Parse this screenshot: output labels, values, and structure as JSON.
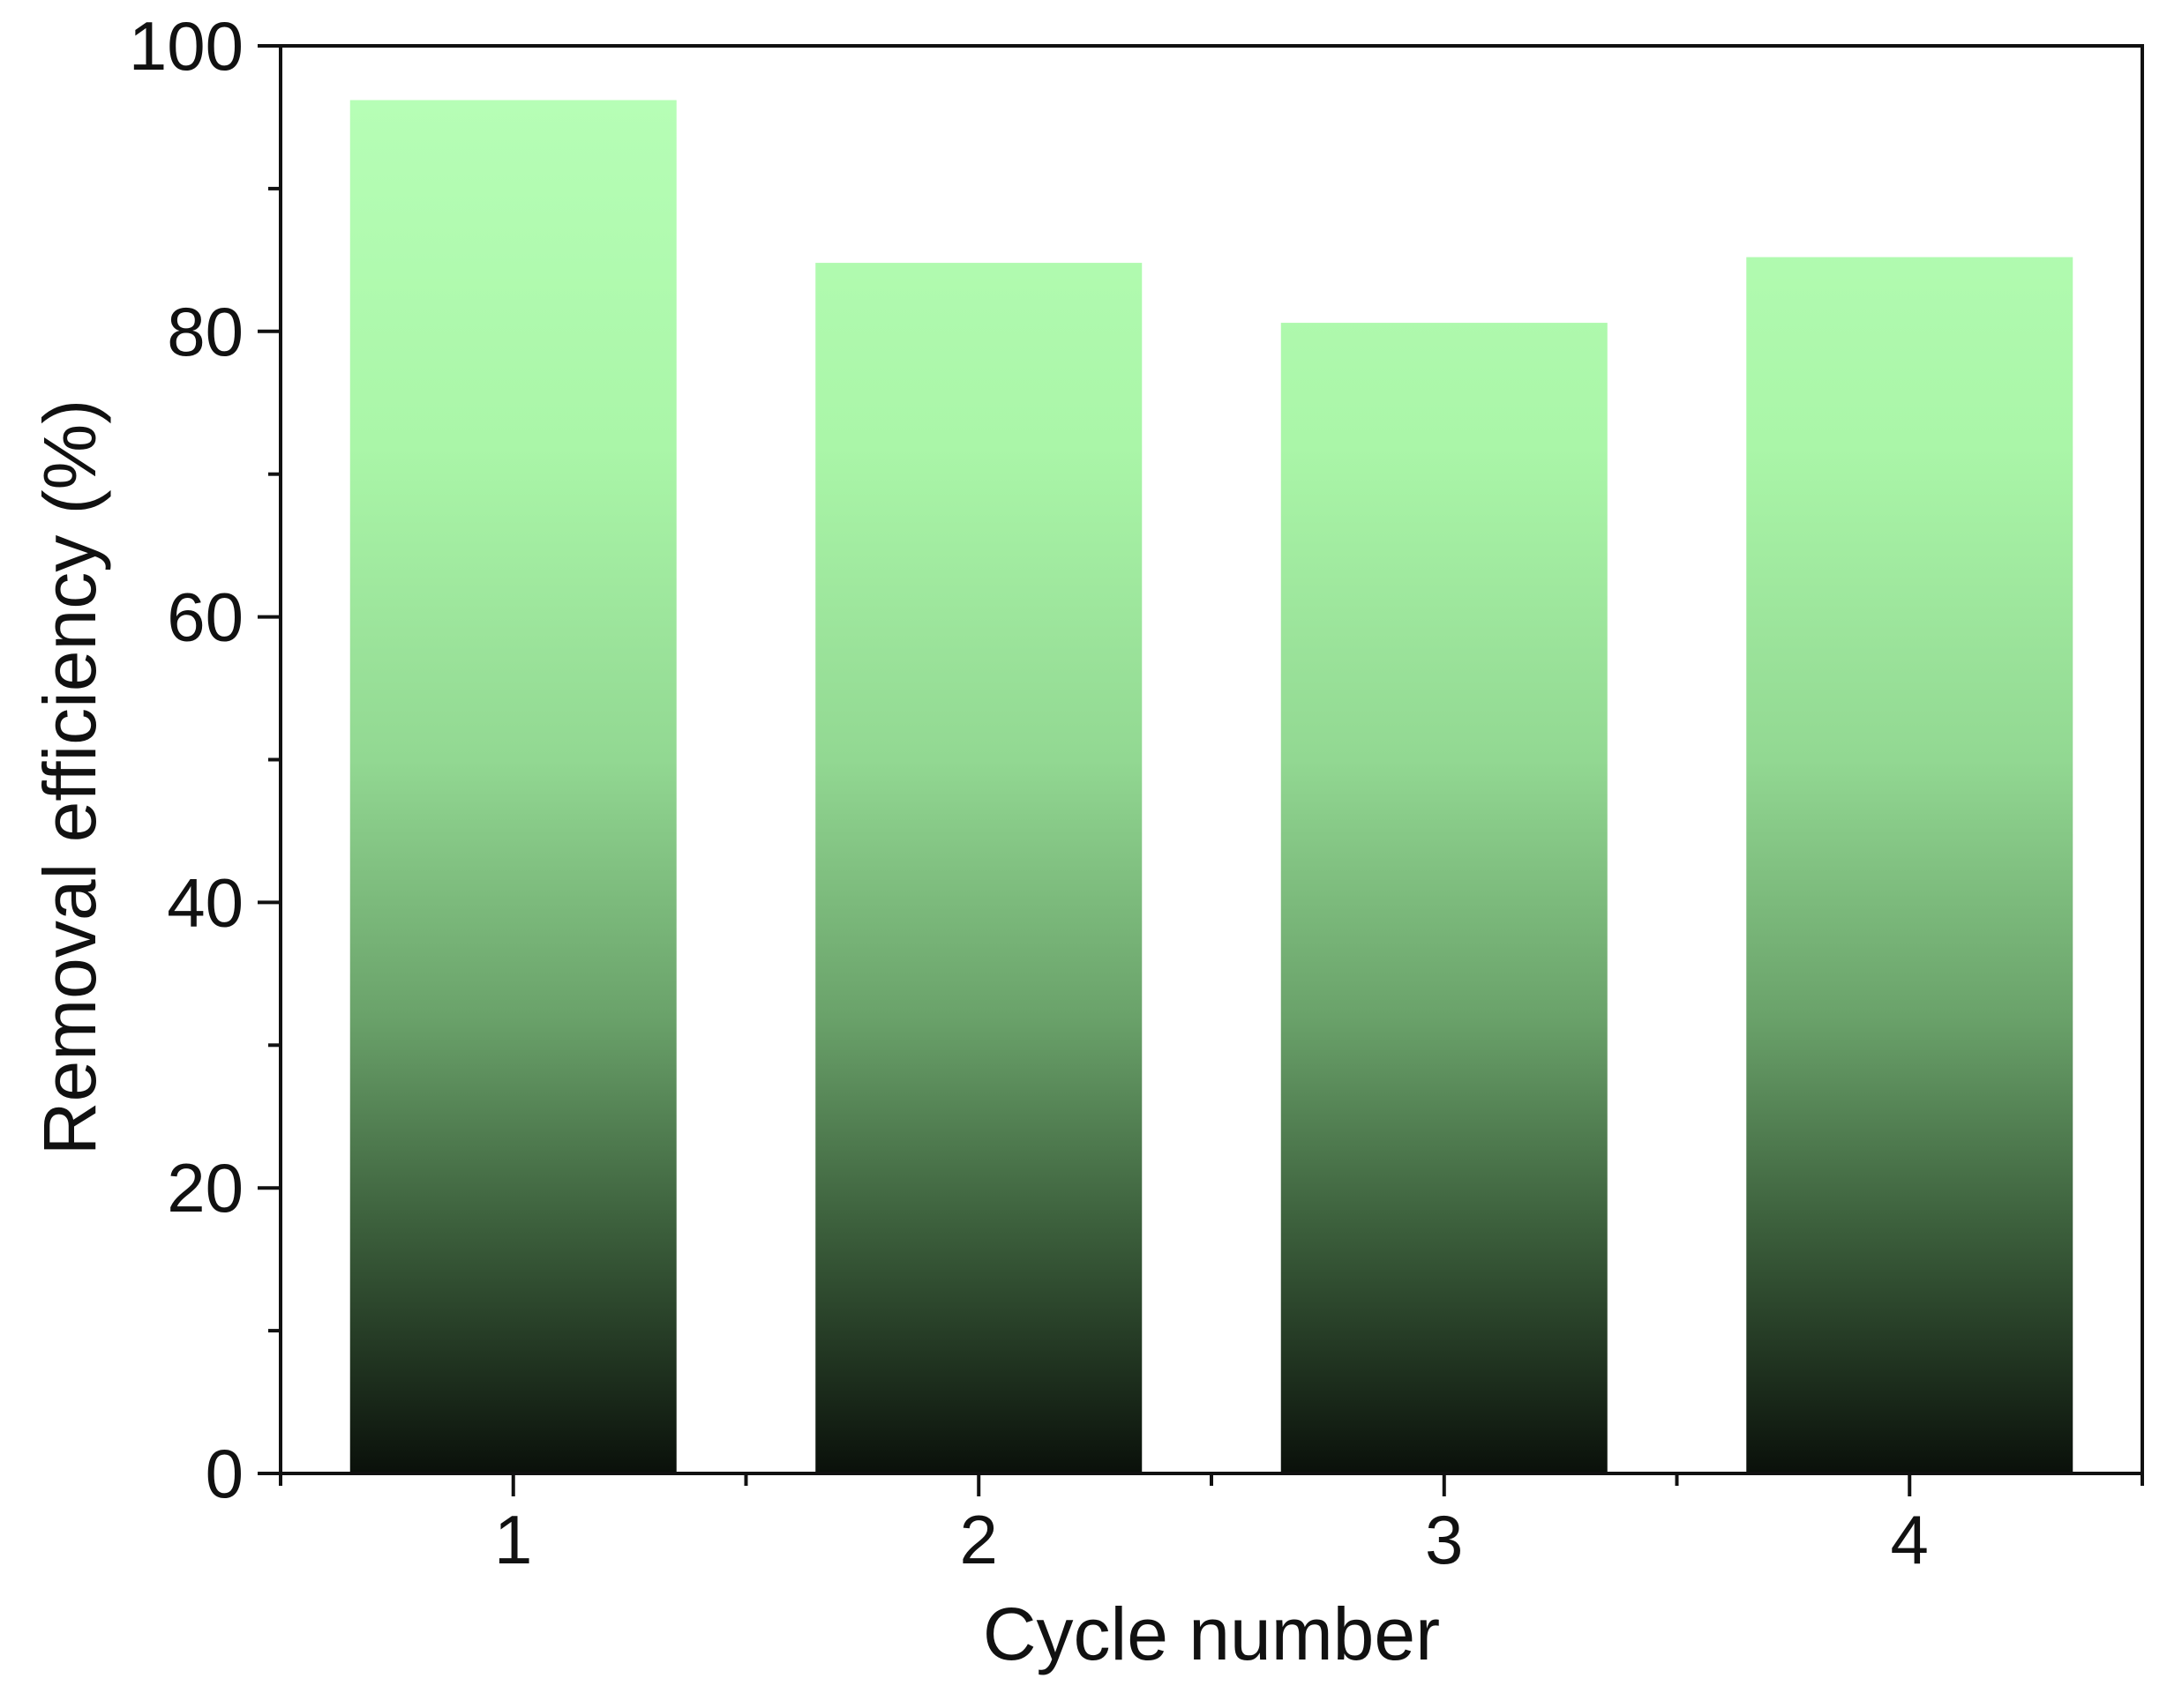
{
  "chart_data": {
    "type": "bar",
    "title": "",
    "xlabel": "Cycle number",
    "ylabel": "Removal efficiency (%)",
    "categories": [
      "1",
      "2",
      "3",
      "4"
    ],
    "values": [
      96.2,
      84.8,
      80.6,
      85.2
    ],
    "ylim": [
      0,
      100
    ],
    "y_ticks": [
      "0",
      "20",
      "40",
      "60",
      "80",
      "100"
    ],
    "grid": false,
    "legend": "none",
    "colors": {
      "bar_top": "#b8ffb8",
      "bar_mid": "#a8f5a0",
      "bar_bottom": "#0a100a",
      "axis": "#111111"
    }
  }
}
